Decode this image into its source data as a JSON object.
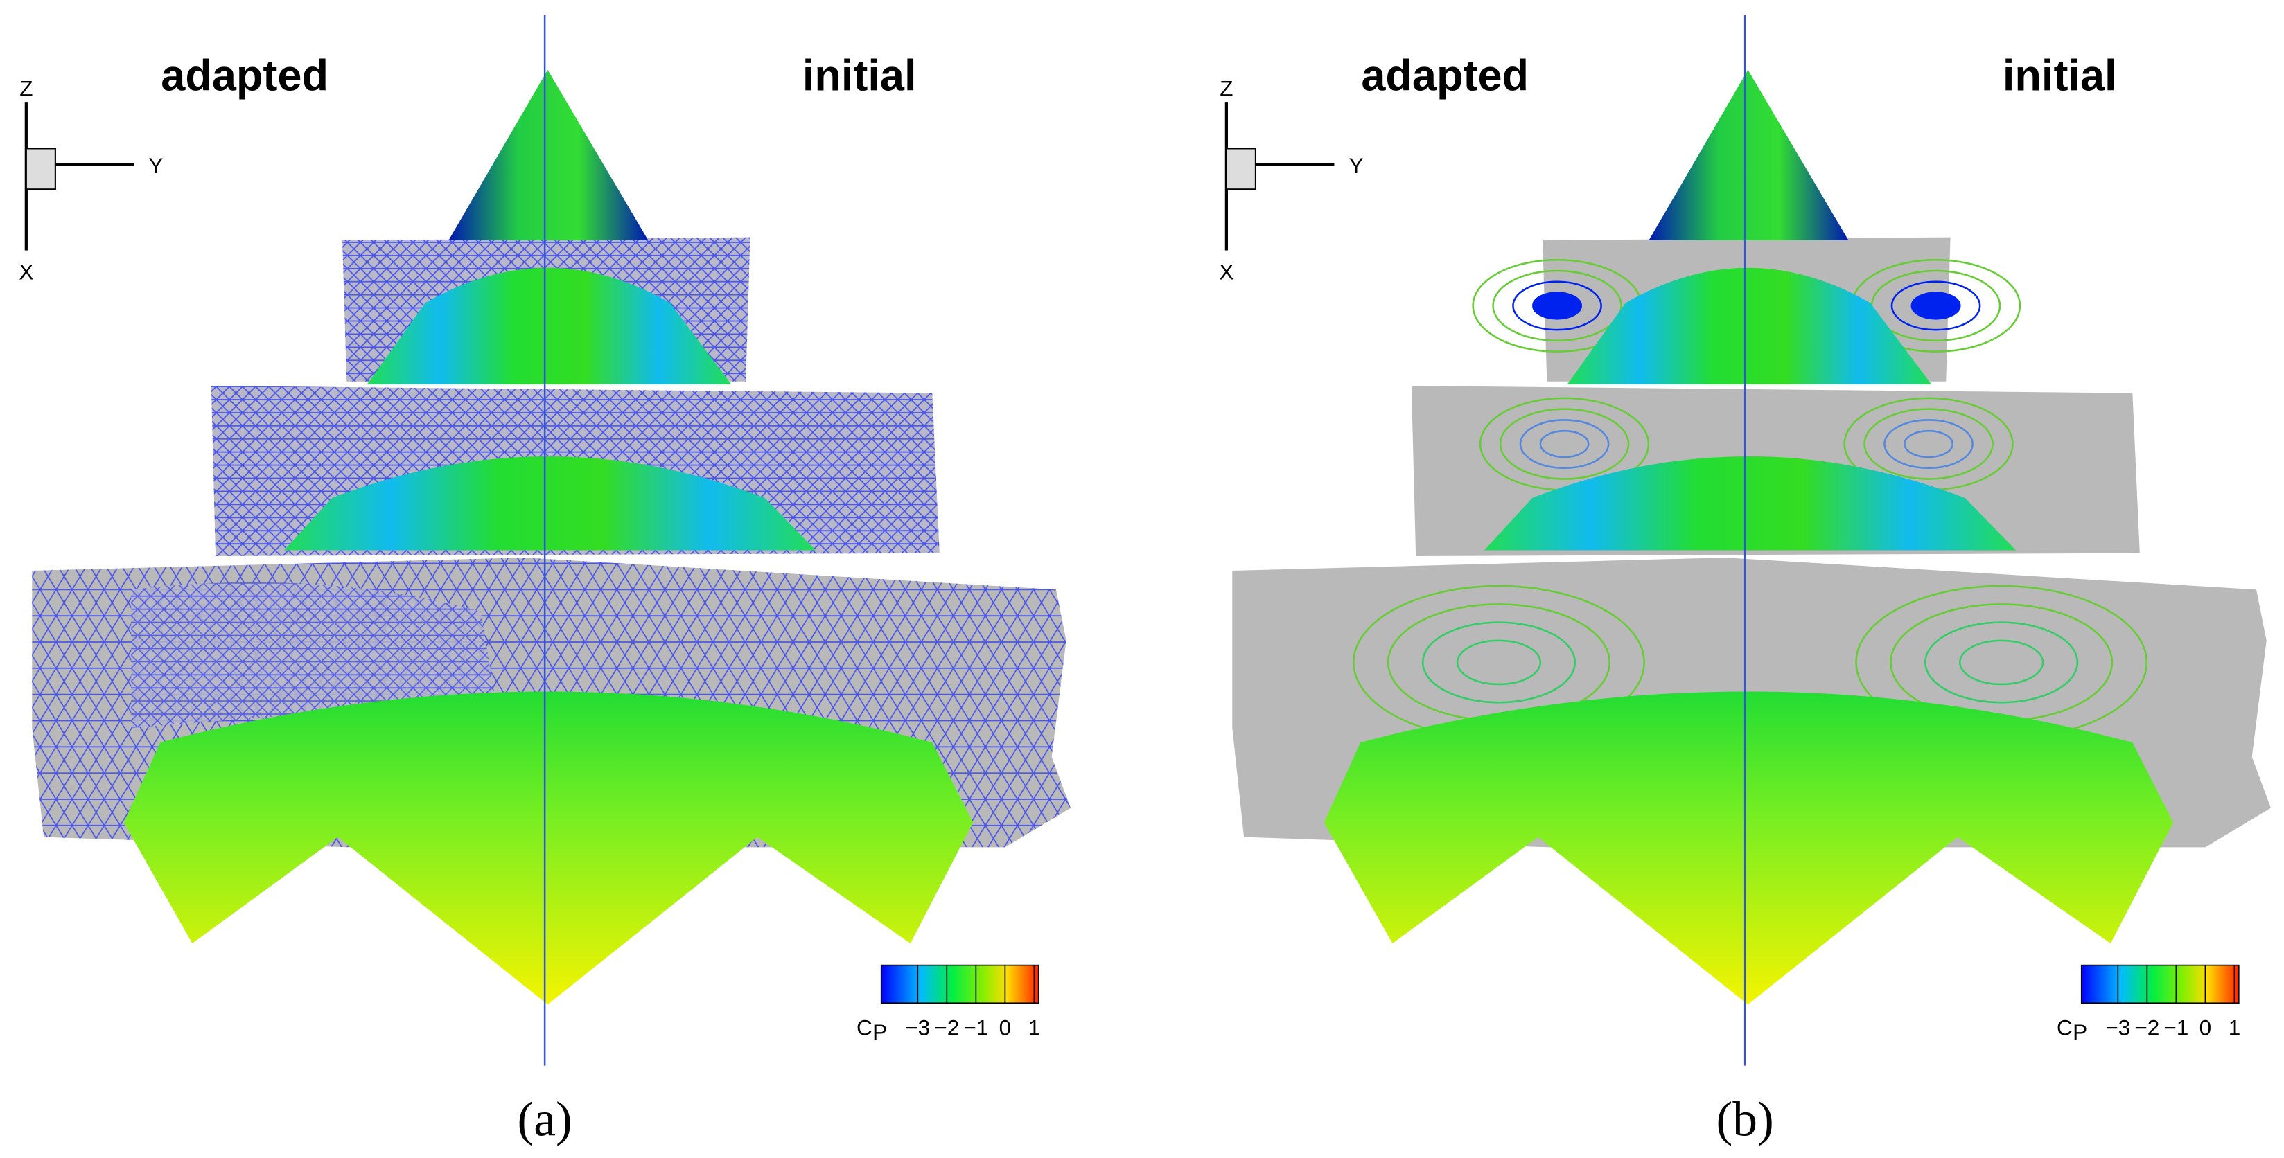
{
  "panels": [
    {
      "label": "(a)",
      "left_title": "adapted",
      "right_title": "initial",
      "axes": {
        "z": "Z",
        "y": "Y",
        "x": "X"
      },
      "colorbar": {
        "symbol": "C",
        "subscript": "P",
        "ticks": [
          {
            "value": -3,
            "label": "−3"
          },
          {
            "value": -2,
            "label": "−2"
          },
          {
            "value": -1,
            "label": "−1"
          },
          0,
          1
        ]
      }
    },
    {
      "label": "(b)",
      "left_title": "adapted",
      "right_title": "initial",
      "axes": {
        "z": "Z",
        "y": "Y",
        "x": "X"
      },
      "colorbar": {
        "symbol": "C",
        "subscript": "P",
        "ticks": [
          {
            "value": -3,
            "label": "−3"
          },
          {
            "value": -2,
            "label": "−2"
          },
          {
            "value": -1,
            "label": "−1"
          },
          0,
          1
        ]
      }
    }
  ]
}
